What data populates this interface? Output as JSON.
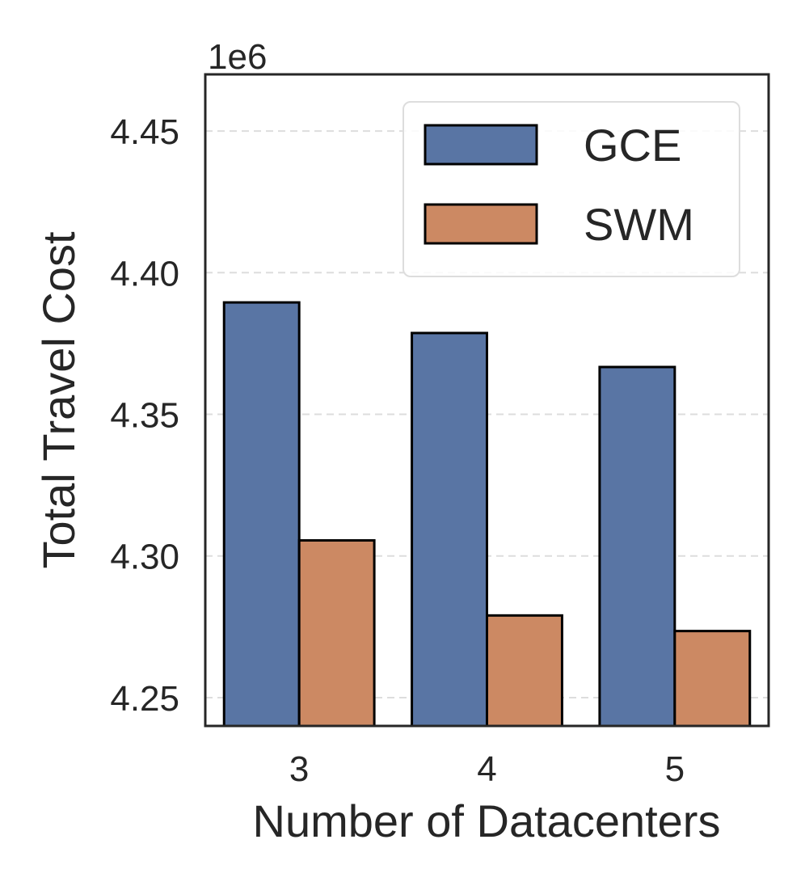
{
  "chart_data": {
    "type": "bar",
    "title": "",
    "xlabel": "Number of Datacenters",
    "ylabel": "Total Travel Cost",
    "y_offset_text": "1e6",
    "categories": [
      "3",
      "4",
      "5"
    ],
    "series": [
      {
        "name": "GCE",
        "color": "#5975a4",
        "values": [
          4.3895,
          4.3787,
          4.3667
        ]
      },
      {
        "name": "SWM",
        "color": "#cc8963",
        "values": [
          4.3055,
          4.279,
          4.2735
        ]
      }
    ],
    "ylim": [
      4.24,
      4.47
    ],
    "yticks": [
      4.25,
      4.3,
      4.35,
      4.4,
      4.45
    ],
    "ytick_labels": [
      "4.25",
      "4.30",
      "4.35",
      "4.40",
      "4.45"
    ],
    "grid": "y-dashed",
    "legend_position": "top-right"
  }
}
